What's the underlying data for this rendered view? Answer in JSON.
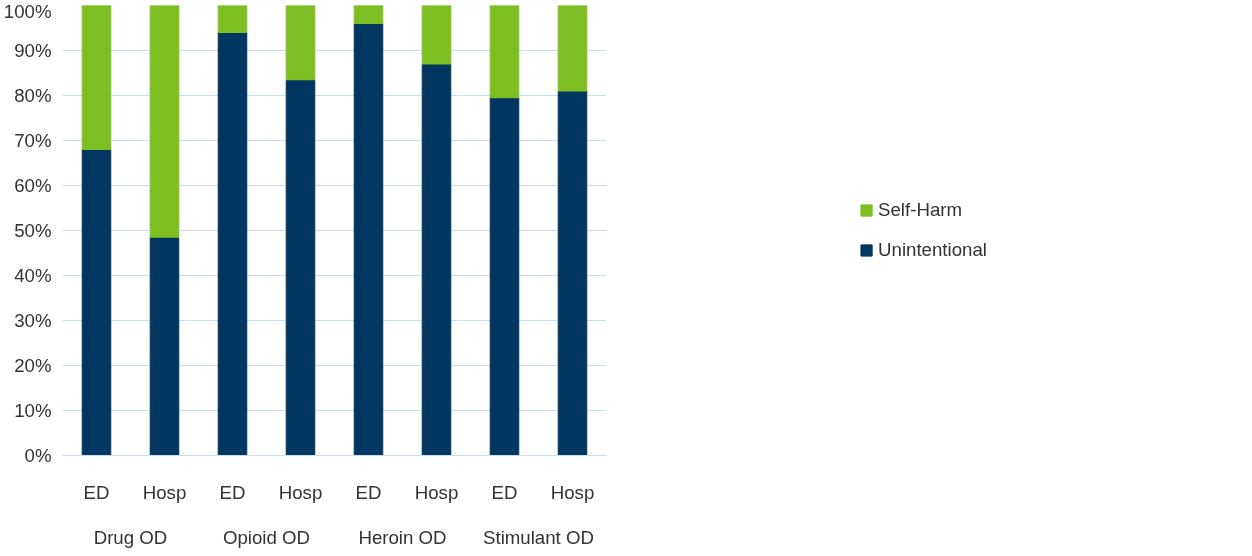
{
  "chart_data": {
    "type": "bar",
    "stacked": true,
    "categories": [
      "ED",
      "Hosp",
      "ED",
      "Hosp",
      "ED",
      "Hosp",
      "ED",
      "Hosp"
    ],
    "annotations": [
      "Drug OD",
      "Opioid OD",
      "Heroin OD",
      "Stimulant OD"
    ],
    "series": [
      {
        "name": "Unintentional",
        "color": "#003660",
        "values": [
          68,
          48.5,
          94,
          83.5,
          96,
          87,
          79.5,
          81
        ]
      },
      {
        "name": "Self-Harm",
        "color": "#7dbf22",
        "values": [
          32,
          51.5,
          6,
          16.5,
          4,
          13,
          20.5,
          19
        ]
      }
    ],
    "ylim": [
      0,
      100
    ],
    "yticks": [
      {
        "value": 0,
        "label": "0%"
      },
      {
        "value": 10,
        "label": "10%"
      },
      {
        "value": 20,
        "label": "20%"
      },
      {
        "value": 30,
        "label": "30%"
      },
      {
        "value": 40,
        "label": "40%"
      },
      {
        "value": 50,
        "label": "50%"
      },
      {
        "value": 60,
        "label": "60%"
      },
      {
        "value": 70,
        "label": "70%"
      },
      {
        "value": 80,
        "label": "80%"
      },
      {
        "value": 90,
        "label": "90%"
      },
      {
        "value": 100,
        "label": "100%"
      }
    ],
    "grid": "y",
    "legend": "right"
  }
}
